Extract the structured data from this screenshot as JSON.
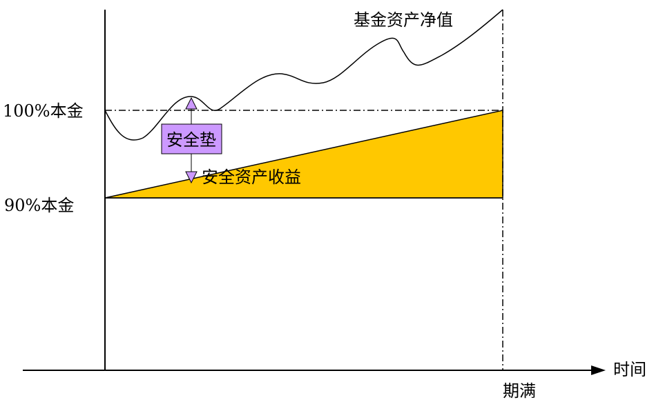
{
  "labels": {
    "nav": "基金资产净值",
    "principal_100": "100%本金",
    "principal_90": "90%本金",
    "cushion": "安全垫",
    "safe_asset_return": "安全资产收益",
    "x_axis": "时间",
    "maturity": "期满"
  },
  "colors": {
    "safe_asset_fill": "#FFC800",
    "cushion_fill": "#CC99FF",
    "line": "#000000"
  }
}
